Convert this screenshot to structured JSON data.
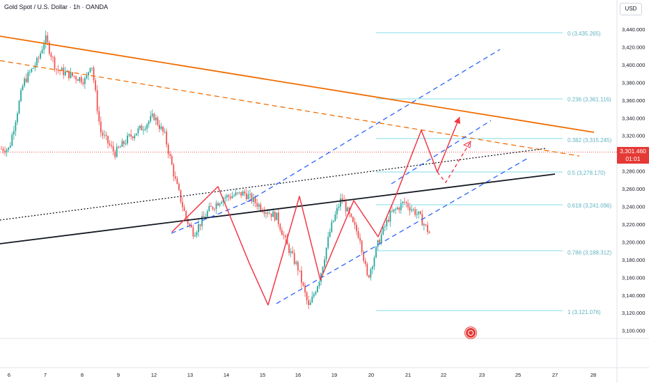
{
  "header": {
    "symbol_title": "Gold Spot / U.S. Dollar · 1h · OANDA",
    "currency": "USD"
  },
  "price_tag": {
    "price": "3,301.460",
    "countdown": "01:01"
  },
  "colors": {
    "candle_up": "#26a69a",
    "candle_down": "#ef5350",
    "fib": "#80deea",
    "fib_text": "#5fb3c3",
    "trend_orange": "#ef6c00",
    "channel_blue": "#2962ff",
    "zigzag_red": "#f23645",
    "price_line": "#e53935"
  },
  "chart_data": {
    "type": "candlestick",
    "y_ticks": [
      "3,440.000",
      "3,420.000",
      "3,400.000",
      "3,380.000",
      "3,360.000",
      "3,340.000",
      "3,320.000",
      "3,300.000",
      "3,280.000",
      "3,260.000",
      "3,240.000",
      "3,220.000",
      "3,200.000",
      "3,180.000",
      "3,160.000",
      "3,140.000",
      "3,120.000",
      "3,100.000"
    ],
    "y_tick_values": [
      3440,
      3420,
      3400,
      3380,
      3360,
      3340,
      3320,
      3300,
      3280,
      3260,
      3240,
      3220,
      3200,
      3180,
      3160,
      3140,
      3120,
      3100
    ],
    "x_ticks": [
      "6",
      "7",
      "8",
      "9",
      "12",
      "13",
      "14",
      "15",
      "16",
      "19",
      "20",
      "21",
      "22",
      "23",
      "25",
      "27",
      "28"
    ],
    "x_tick_days": [
      6,
      7,
      8,
      9,
      12,
      13,
      14,
      15,
      16,
      19,
      20,
      21,
      22,
      23,
      25,
      27,
      28
    ],
    "last_price": 3301.46,
    "fib_levels": [
      {
        "label": "0 (3,435.265)",
        "value": 3435.265
      },
      {
        "label": "0.236 (3,361.116)",
        "value": 3361.116
      },
      {
        "label": "0.382 (3,315.245)",
        "value": 3315.245
      },
      {
        "label": "0.5 (3,278.170)",
        "value": 3278.17
      },
      {
        "label": "0.618 (3,241.096)",
        "value": 3241.096
      },
      {
        "label": "0.786 (3,188.312)",
        "value": 3188.312
      },
      {
        "label": "1 (3,121.076)",
        "value": 3121.076
      }
    ],
    "price_path": [
      {
        "day": 6.0,
        "price": 3305
      },
      {
        "day": 6.4,
        "price": 3380
      },
      {
        "day": 6.8,
        "price": 3405
      },
      {
        "day": 7.0,
        "price": 3430
      },
      {
        "day": 7.3,
        "price": 3395
      },
      {
        "day": 7.7,
        "price": 3388
      },
      {
        "day": 8.1,
        "price": 3382
      },
      {
        "day": 8.25,
        "price": 3405
      },
      {
        "day": 8.5,
        "price": 3325
      },
      {
        "day": 8.9,
        "price": 3300
      },
      {
        "day": 9.3,
        "price": 3318
      },
      {
        "day": 9.7,
        "price": 3330
      },
      {
        "day": 10.0,
        "price": 3342
      },
      {
        "day": 10.3,
        "price": 3320
      },
      {
        "day": 10.6,
        "price": 3268
      },
      {
        "day": 10.9,
        "price": 3225
      },
      {
        "day": 11.1,
        "price": 3210
      },
      {
        "day": 11.5,
        "price": 3235
      },
      {
        "day": 11.9,
        "price": 3250
      },
      {
        "day": 12.5,
        "price": 3255
      },
      {
        "day": 13.0,
        "price": 3238
      },
      {
        "day": 13.4,
        "price": 3228
      },
      {
        "day": 13.7,
        "price": 3195
      },
      {
        "day": 14.0,
        "price": 3170
      },
      {
        "day": 14.3,
        "price": 3125
      },
      {
        "day": 14.6,
        "price": 3160
      },
      {
        "day": 14.9,
        "price": 3215
      },
      {
        "day": 15.2,
        "price": 3250
      },
      {
        "day": 15.5,
        "price": 3220
      },
      {
        "day": 15.7,
        "price": 3205
      },
      {
        "day": 15.9,
        "price": 3158
      },
      {
        "day": 16.2,
        "price": 3200
      },
      {
        "day": 16.5,
        "price": 3230
      },
      {
        "day": 16.9,
        "price": 3245
      },
      {
        "day": 17.3,
        "price": 3230
      },
      {
        "day": 17.6,
        "price": 3210
      },
      {
        "day": 17.9,
        "price": 3240
      },
      {
        "day": 18.2,
        "price": 3280
      },
      {
        "day": 18.5,
        "price": 3295
      },
      {
        "day": 18.8,
        "price": 3310
      },
      {
        "day": 19.0,
        "price": 3325
      },
      {
        "day": 19.2,
        "price": 3305
      }
    ]
  }
}
